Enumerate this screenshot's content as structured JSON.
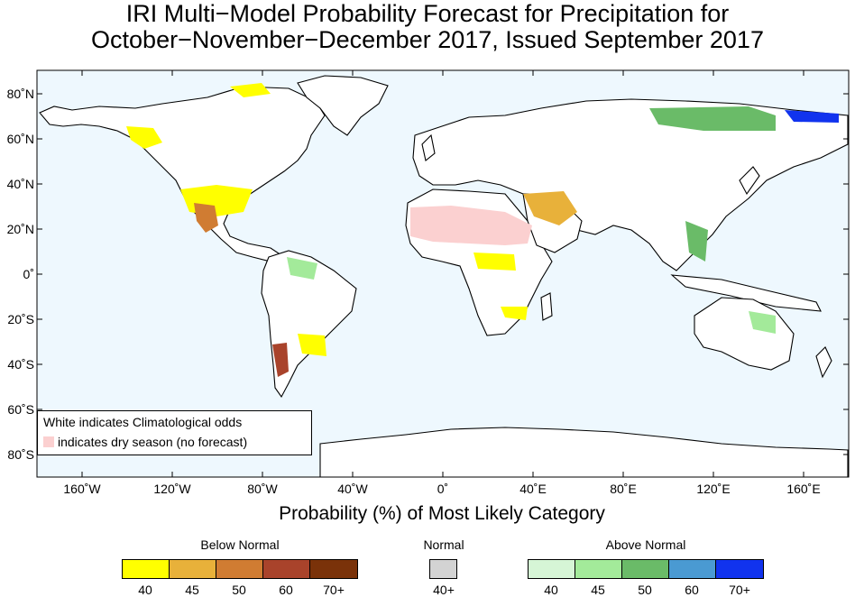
{
  "title": {
    "line1": "IRI Multi−Model Probability Forecast for Precipitation for",
    "line2": "October−November−December 2017, Issued September 2017"
  },
  "axes": {
    "y_labels": [
      "80˚N",
      "60˚N",
      "40˚N",
      "20˚N",
      "0˚",
      "20˚S",
      "40˚S",
      "60˚S",
      "80˚S"
    ],
    "x_labels": [
      "160˚W",
      "120˚W",
      "80˚W",
      "40˚W",
      "0˚",
      "40˚E",
      "80˚E",
      "120˚E",
      "160˚E"
    ]
  },
  "map_legend": {
    "line1": "White indicates Climatological odds",
    "line2": "indicates dry season (no forecast)"
  },
  "caption": "Probability (%) of Most Likely Category",
  "colorbar": {
    "below": {
      "label": "Below Normal",
      "ticks": [
        "40",
        "45",
        "50",
        "60",
        "70+"
      ],
      "colors": [
        "#ffff00",
        "#e8b13a",
        "#d07c32",
        "#a9432b",
        "#7a3209"
      ]
    },
    "normal": {
      "label": "Normal",
      "ticks": [
        "40+"
      ],
      "colors": [
        "#d3d3d3"
      ]
    },
    "above": {
      "label": "Above Normal",
      "ticks": [
        "40",
        "45",
        "50",
        "60",
        "70+"
      ],
      "colors": [
        "#d6f5d6",
        "#a3ea9a",
        "#6abb68",
        "#4a9ad2",
        "#1133ee"
      ]
    }
  },
  "colors": {
    "ocean": "#eef8fe",
    "land": "#ffffff",
    "dry_season": "#fbd0d0"
  }
}
